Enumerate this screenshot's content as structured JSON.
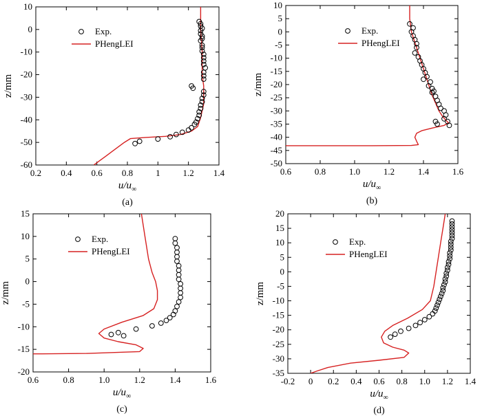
{
  "figure": {
    "series_names": {
      "exp": "Exp.",
      "sim": "PHengLEI"
    },
    "colors": {
      "exp": "#000000",
      "sim": "#d62020"
    }
  },
  "chart_data": [
    {
      "type": "line",
      "caption": "(a)",
      "xlabel": "u/u",
      "xlabel_sub": "∞",
      "ylabel": "z/mm",
      "xlim": [
        0.2,
        1.4
      ],
      "ylim": [
        -60,
        10
      ],
      "xticks": [
        "0.2",
        "0.4",
        "0.6",
        "0.8",
        "1",
        "1.2",
        "1.4"
      ],
      "yticks": [
        "-60",
        "-50",
        "-40",
        "-30",
        "-20",
        "-10",
        "0",
        "10"
      ],
      "series": [
        {
          "name": "PHengLEI",
          "kind": "line",
          "x": [
            1.28,
            1.28,
            1.29,
            1.29,
            1.3,
            1.3,
            1.3,
            1.29,
            1.28,
            1.27,
            1.26,
            1.22,
            1.15,
            1.05,
            0.92,
            0.82,
            0.78,
            0.74,
            0.7,
            0.66,
            0.62,
            0.58
          ],
          "y": [
            10,
            0,
            -10,
            -20,
            -25,
            -30,
            -33,
            -36,
            -39,
            -41,
            -43,
            -45,
            -46.5,
            -47.3,
            -47.8,
            -48.3,
            -50,
            -52,
            -54,
            -56,
            -58,
            -60
          ]
        },
        {
          "name": "Exp.",
          "kind": "scatter",
          "x": [
            1.27,
            1.28,
            1.28,
            1.29,
            1.28,
            1.28,
            1.29,
            1.29,
            1.28,
            1.29,
            1.29,
            1.29,
            1.3,
            1.3,
            1.3,
            1.3,
            1.31,
            1.3,
            1.3,
            1.3,
            1.22,
            1.23,
            1.3,
            1.3,
            1.29,
            1.29,
            1.28,
            1.28,
            1.27,
            1.27,
            1.26,
            1.25,
            1.24,
            1.22,
            1.2,
            1.16,
            1.12,
            1.08,
            1.0,
            0.88,
            0.85
          ],
          "y": [
            3.5,
            2.5,
            1.5,
            0.5,
            -0.5,
            -2,
            -3,
            -4,
            -5,
            -7,
            -8,
            -9.5,
            -11,
            -12.5,
            -14,
            -15.5,
            -17,
            -19,
            -20.5,
            -22,
            -25,
            -26,
            -27.5,
            -29,
            -30.5,
            -32,
            -33.5,
            -35,
            -36.5,
            -38,
            -39.5,
            -41,
            -42,
            -43.5,
            -44.5,
            -45.5,
            -46.5,
            -47.5,
            -48.5,
            -49.5,
            -50.5
          ]
        }
      ]
    },
    {
      "type": "line",
      "caption": "(b)",
      "xlabel": "u/u",
      "xlabel_sub": "∞",
      "ylabel": "z/mm",
      "xlim": [
        0.6,
        1.6
      ],
      "ylim": [
        -50,
        10
      ],
      "xticks": [
        "0.6",
        "0.8",
        "1.0",
        "1.2",
        "1.4",
        "1.6"
      ],
      "yticks": [
        "-50",
        "-45",
        "-40",
        "-35",
        "-30",
        "-25",
        "-20",
        "-15",
        "-10",
        "-5",
        "0",
        "5",
        "10"
      ],
      "series": [
        {
          "name": "PHengLEI",
          "kind": "line",
          "x": [
            1.32,
            1.32,
            1.33,
            1.35,
            1.37,
            1.39,
            1.41,
            1.43,
            1.45,
            1.47,
            1.49,
            1.51,
            1.53,
            1.545,
            1.52,
            1.45,
            1.39,
            1.36,
            1.35,
            1.36,
            1.37,
            1.33,
            1.1,
            0.8,
            0.6
          ],
          "y": [
            10,
            5,
            0,
            -4,
            -8,
            -12,
            -16,
            -20,
            -24,
            -27,
            -30,
            -32,
            -33.5,
            -34.5,
            -35.5,
            -36.5,
            -37.5,
            -38.5,
            -40,
            -41.5,
            -42.8,
            -43.1,
            -43.2,
            -43.2,
            -43.2
          ]
        },
        {
          "name": "Exp.",
          "kind": "scatter",
          "x": [
            1.32,
            1.34,
            1.33,
            1.34,
            1.35,
            1.36,
            1.36,
            1.35,
            1.37,
            1.38,
            1.39,
            1.4,
            1.41,
            1.42,
            1.4,
            1.44,
            1.43,
            1.45,
            1.46,
            1.45,
            1.47,
            1.48,
            1.49,
            1.5,
            1.52,
            1.53,
            1.52,
            1.54,
            1.47,
            1.48,
            1.55
          ],
          "y": [
            3,
            1.5,
            0,
            -1.5,
            -3,
            -4.5,
            -6,
            -8,
            -9.5,
            -11,
            -12.5,
            -14,
            -15.5,
            -17,
            -18,
            -19,
            -20.5,
            -21.5,
            -22.5,
            -23,
            -24.5,
            -26,
            -27.5,
            -29,
            -30,
            -31.5,
            -33,
            -34,
            -34,
            -35,
            -35.5
          ]
        }
      ]
    },
    {
      "type": "line",
      "caption": "(c)",
      "xlabel": "u/u",
      "xlabel_sub": "∞",
      "ylabel": "z/mm",
      "xlim": [
        0.6,
        1.6
      ],
      "ylim": [
        -20,
        15
      ],
      "xticks": [
        "0.6",
        "0.8",
        "1.0",
        "1.2",
        "1.4",
        "1.6"
      ],
      "yticks": [
        "-20",
        "-15",
        "-10",
        "-5",
        "0",
        "5",
        "10",
        "15"
      ],
      "series": [
        {
          "name": "PHengLEI",
          "kind": "line",
          "x": [
            1.21,
            1.23,
            1.25,
            1.27,
            1.29,
            1.3,
            1.3,
            1.28,
            1.22,
            1.1,
            1.0,
            0.97,
            1.0,
            1.08,
            1.18,
            1.22,
            1.2,
            0.9,
            0.65,
            0.6
          ],
          "y": [
            15,
            10,
            5,
            2,
            0,
            -2,
            -4,
            -6,
            -7.5,
            -9,
            -10.5,
            -11.5,
            -12.5,
            -13.3,
            -14,
            -14.8,
            -15.5,
            -15.9,
            -16,
            -16
          ]
        },
        {
          "name": "Exp.",
          "kind": "scatter",
          "x": [
            1.4,
            1.4,
            1.41,
            1.41,
            1.41,
            1.41,
            1.42,
            1.42,
            1.42,
            1.42,
            1.43,
            1.43,
            1.43,
            1.43,
            1.42,
            1.41,
            1.4,
            1.39,
            1.37,
            1.35,
            1.32,
            1.27,
            1.18,
            1.08,
            1.04,
            1.11
          ],
          "y": [
            9.5,
            8.5,
            7.5,
            6.5,
            5.5,
            4.5,
            3.5,
            2.5,
            1.5,
            0.5,
            -0.5,
            -1.5,
            -2.5,
            -3.5,
            -4.5,
            -5.5,
            -6.5,
            -7.3,
            -8,
            -8.6,
            -9.2,
            -9.8,
            -10.5,
            -11.3,
            -11.7,
            -12
          ]
        }
      ]
    },
    {
      "type": "line",
      "caption": "(d)",
      "xlabel": "u/u",
      "xlabel_sub": "∞",
      "ylabel": "z/mm",
      "xlim": [
        -0.2,
        1.4
      ],
      "ylim": [
        -35,
        20
      ],
      "xticks": [
        "-0.2",
        "0",
        "0.2",
        "0.4",
        "0.6",
        "0.8",
        "1.0",
        "1.2",
        "1.4"
      ],
      "yticks": [
        "-35",
        "-30",
        "-25",
        "-20",
        "-15",
        "-10",
        "-5",
        "0",
        "5",
        "10",
        "15",
        "20"
      ],
      "series": [
        {
          "name": "PHengLEI",
          "kind": "line",
          "x": [
            1.18,
            1.16,
            1.14,
            1.12,
            1.1,
            1.08,
            1.05,
            0.98,
            0.85,
            0.72,
            0.65,
            0.62,
            0.64,
            0.72,
            0.82,
            0.86,
            0.82,
            0.6,
            0.35,
            0.15,
            0.05,
            0.0
          ],
          "y": [
            20,
            15,
            10,
            5,
            0,
            -5,
            -10,
            -13,
            -16,
            -18.5,
            -20.5,
            -22.5,
            -24.5,
            -26,
            -27,
            -28,
            -29.5,
            -30.5,
            -31.5,
            -33,
            -34.3,
            -35
          ]
        },
        {
          "name": "Exp.",
          "kind": "scatter",
          "x": [
            1.24,
            1.24,
            1.24,
            1.24,
            1.24,
            1.24,
            1.24,
            1.23,
            1.23,
            1.23,
            1.23,
            1.22,
            1.22,
            1.22,
            1.21,
            1.21,
            1.2,
            1.2,
            1.19,
            1.19,
            1.18,
            1.18,
            1.17,
            1.16,
            1.16,
            1.15,
            1.14,
            1.13,
            1.12,
            1.11,
            1.1,
            1.09,
            1.07,
            1.04,
            1.0,
            0.96,
            0.92,
            0.86,
            0.79,
            0.74,
            0.7
          ],
          "y": [
            17.5,
            16.5,
            15.5,
            14.5,
            13.5,
            12.5,
            11.5,
            10.5,
            9.5,
            8.5,
            7.5,
            6.5,
            5.5,
            4.5,
            3.5,
            2.5,
            1.5,
            0.5,
            -0.5,
            -1.5,
            -2.5,
            -3.5,
            -4.5,
            -5.5,
            -6.5,
            -7.5,
            -8.5,
            -9.5,
            -10.5,
            -11.5,
            -12.5,
            -13.5,
            -14.5,
            -15.5,
            -16.5,
            -17.5,
            -18.5,
            -19.5,
            -20.5,
            -21.5,
            -22.5
          ]
        }
      ]
    }
  ]
}
